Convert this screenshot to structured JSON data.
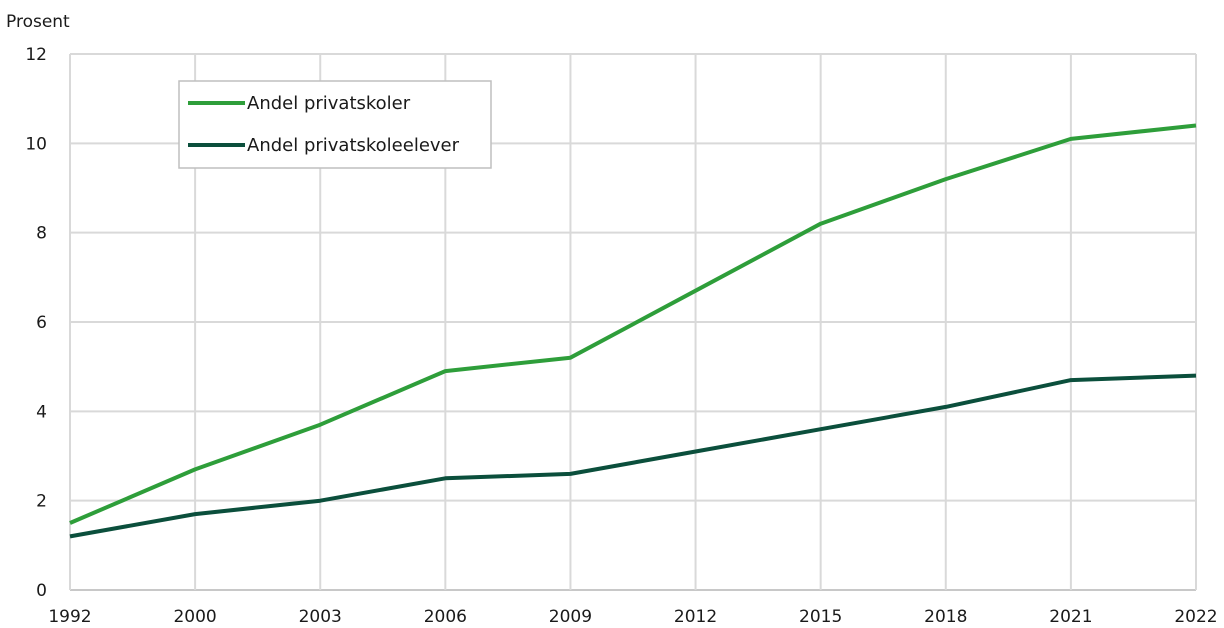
{
  "chart_data": {
    "type": "line",
    "ylabel": "Prosent",
    "xlabel": "",
    "title": "",
    "categories": [
      "1992",
      "2000",
      "2003",
      "2006",
      "2009",
      "2012",
      "2015",
      "2018",
      "2021",
      "2022"
    ],
    "ylim": [
      0,
      12
    ],
    "yticks": [
      0,
      2,
      4,
      6,
      8,
      10,
      12
    ],
    "grid": true,
    "legend_position": "top-left",
    "series": [
      {
        "name": "Andel privatskoler",
        "color": "#2e9e3a",
        "values": [
          1.5,
          2.7,
          3.7,
          4.9,
          5.2,
          6.7,
          8.2,
          9.2,
          10.1,
          10.4
        ]
      },
      {
        "name": "Andel privatskoleelever",
        "color": "#0b4f3c",
        "values": [
          1.2,
          1.7,
          2.0,
          2.5,
          2.6,
          3.1,
          3.6,
          4.1,
          4.7,
          4.8
        ]
      }
    ]
  }
}
